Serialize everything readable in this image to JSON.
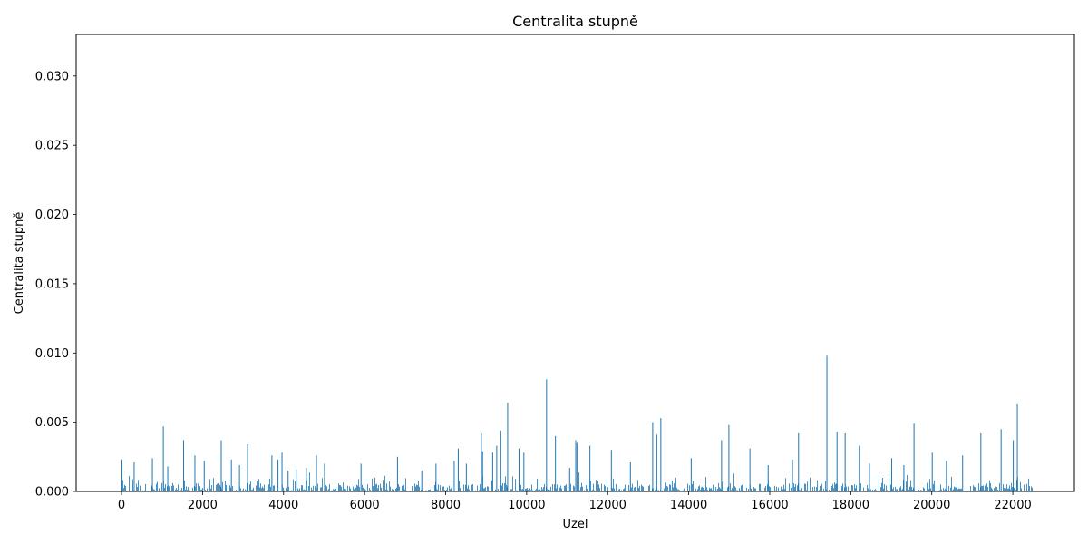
{
  "chart_data": {
    "type": "bar",
    "title": "Centralita stupně",
    "xlabel": "Uzel",
    "ylabel": "Centralita stupně",
    "xlim": [
      -1120,
      23520
    ],
    "ylim": [
      0,
      0.033
    ],
    "x_ticks": [
      0,
      2000,
      4000,
      6000,
      8000,
      10000,
      12000,
      14000,
      16000,
      18000,
      20000,
      22000
    ],
    "x_tick_labels": [
      "0",
      "2000",
      "4000",
      "6000",
      "8000",
      "10000",
      "12000",
      "14000",
      "16000",
      "18000",
      "20000",
      "22000"
    ],
    "y_ticks": [
      0.0,
      0.005,
      0.01,
      0.015,
      0.02,
      0.025,
      0.03
    ],
    "y_tick_labels": [
      "0.000",
      "0.005",
      "0.010",
      "0.015",
      "0.020",
      "0.025",
      "0.030"
    ],
    "bar_color": "#1f77b4",
    "node_count": 22470,
    "baseline_range": [
      0.0,
      0.0006
    ],
    "grid": false,
    "legend": "none",
    "x": [
      0,
      300,
      750,
      1020,
      1130,
      1520,
      1800,
      2030,
      2450,
      2700,
      2900,
      3100,
      3700,
      3850,
      3950,
      4100,
      4300,
      4550,
      4800,
      5000,
      5900,
      6800,
      7400,
      7750,
      8200,
      8300,
      8500,
      8870,
      8900,
      9150,
      9250,
      9350,
      9520,
      9800,
      9920,
      10480,
      10700,
      11050,
      11200,
      11230,
      11550,
      12080,
      12550,
      13100,
      13200,
      13300,
      14050,
      14800,
      14980,
      15500,
      15950,
      16550,
      16700,
      17400,
      17650,
      17850,
      18200,
      18450,
      19000,
      19300,
      19550,
      20000,
      20350,
      20750,
      21200,
      21700,
      22000,
      22100
    ],
    "values": [
      0.0023,
      0.0021,
      0.0024,
      0.0047,
      0.0018,
      0.0037,
      0.0026,
      0.0022,
      0.0037,
      0.0023,
      0.0019,
      0.0034,
      0.0026,
      0.0023,
      0.0028,
      0.0015,
      0.0016,
      0.0017,
      0.0026,
      0.002,
      0.002,
      0.0025,
      0.0015,
      0.002,
      0.0022,
      0.0031,
      0.002,
      0.0042,
      0.0029,
      0.0028,
      0.0033,
      0.0044,
      0.0064,
      0.0031,
      0.0028,
      0.0081,
      0.004,
      0.0017,
      0.0037,
      0.0035,
      0.0033,
      0.003,
      0.0021,
      0.005,
      0.0041,
      0.0053,
      0.0024,
      0.0037,
      0.0048,
      0.0031,
      0.0019,
      0.0023,
      0.0042,
      0.0098,
      0.0043,
      0.0042,
      0.0033,
      0.002,
      0.0024,
      0.0019,
      0.0049,
      0.0028,
      0.0022,
      0.0026,
      0.0042,
      0.0045,
      0.0037,
      0.0063
    ]
  }
}
